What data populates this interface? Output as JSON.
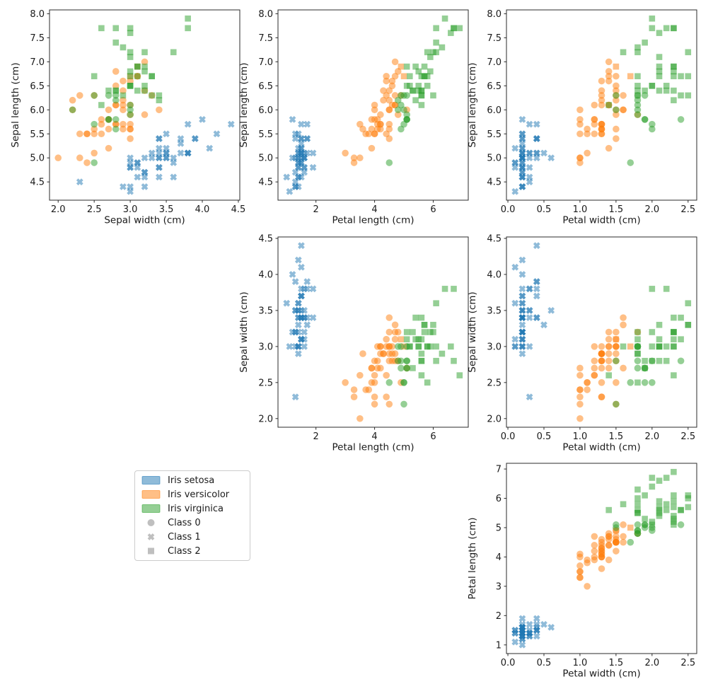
{
  "chart_data": {
    "type": "scatter",
    "dataset": "Iris scatter-plot matrix with cluster markers",
    "marker_alpha": 0.5,
    "spine_color": "#2b2b2b",
    "text_color": "#1a1a1a",
    "species_colors": [
      "#1f77b4",
      "#ff7f0e",
      "#2ca02c"
    ],
    "cluster_markers": [
      "circle",
      "x",
      "square"
    ],
    "legend": {
      "items": [
        {
          "label": "Iris setosa",
          "type": "patch",
          "color": "#1f77b4"
        },
        {
          "label": "Iris versicolor",
          "type": "patch",
          "color": "#ff7f0e"
        },
        {
          "label": "Iris virginica",
          "type": "patch",
          "color": "#2ca02c"
        },
        {
          "label": "Class 0",
          "type": "marker",
          "marker": "circle",
          "color": "#7f7f7f"
        },
        {
          "label": "Class 1",
          "type": "marker",
          "marker": "x",
          "color": "#7f7f7f"
        },
        {
          "label": "Class 2",
          "type": "marker",
          "marker": "square",
          "color": "#7f7f7f"
        }
      ]
    },
    "subplots": [
      {
        "pos": [
          0,
          0
        ],
        "x": "sepal_width",
        "y": "sepal_length",
        "xlabel": "Sepal width (cm)",
        "ylabel": "Sepal length (cm)",
        "xlim": [
          1.88,
          4.52
        ],
        "ylim": [
          4.12,
          8.08
        ],
        "xticks": {
          "values": [
            2.0,
            2.5,
            3.0,
            3.5,
            4.0,
            4.5
          ],
          "labels": [
            "2.0",
            "2.5",
            "3.0",
            "3.5",
            "4.0",
            "4.5"
          ]
        },
        "yticks": {
          "values": [
            4.5,
            5.0,
            5.5,
            6.0,
            6.5,
            7.0,
            7.5,
            8.0
          ],
          "labels": [
            "4.5",
            "5.0",
            "5.5",
            "6.0",
            "6.5",
            "7.0",
            "7.5",
            "8.0"
          ]
        }
      },
      {
        "pos": [
          0,
          1
        ],
        "x": "petal_length",
        "y": "sepal_length",
        "xlabel": "Petal length (cm)",
        "ylabel": "Sepal length (cm)",
        "xlim": [
          0.705,
          7.195
        ],
        "ylim": [
          4.12,
          8.08
        ],
        "xticks": {
          "values": [
            2,
            4,
            6
          ],
          "labels": [
            "2",
            "4",
            "6"
          ]
        },
        "yticks": {
          "values": [
            4.5,
            5.0,
            5.5,
            6.0,
            6.5,
            7.0,
            7.5,
            8.0
          ],
          "labels": [
            "4.5",
            "5.0",
            "5.5",
            "6.0",
            "6.5",
            "7.0",
            "7.5",
            "8.0"
          ]
        }
      },
      {
        "pos": [
          0,
          2
        ],
        "x": "petal_width",
        "y": "sepal_length",
        "xlabel": "Petal width (cm)",
        "ylabel": "Sepal length (cm)",
        "xlim": [
          -0.02,
          2.62
        ],
        "ylim": [
          4.12,
          8.08
        ],
        "xticks": {
          "values": [
            0.0,
            0.5,
            1.0,
            1.5,
            2.0,
            2.5
          ],
          "labels": [
            "0.0",
            "0.5",
            "1.0",
            "1.5",
            "2.0",
            "2.5"
          ]
        },
        "yticks": {
          "values": [
            4.5,
            5.0,
            5.5,
            6.0,
            6.5,
            7.0,
            7.5,
            8.0
          ],
          "labels": [
            "4.5",
            "5.0",
            "5.5",
            "6.0",
            "6.5",
            "7.0",
            "7.5",
            "8.0"
          ]
        }
      },
      {
        "pos": [
          1,
          1
        ],
        "x": "petal_length",
        "y": "sepal_width",
        "xlabel": "Petal length (cm)",
        "ylabel": "Sepal width (cm)",
        "xlim": [
          0.705,
          7.195
        ],
        "ylim": [
          1.88,
          4.52
        ],
        "xticks": {
          "values": [
            2,
            4,
            6
          ],
          "labels": [
            "2",
            "4",
            "6"
          ]
        },
        "yticks": {
          "values": [
            2.0,
            2.5,
            3.0,
            3.5,
            4.0,
            4.5
          ],
          "labels": [
            "2.0",
            "2.5",
            "3.0",
            "3.5",
            "4.0",
            "4.5"
          ]
        }
      },
      {
        "pos": [
          1,
          2
        ],
        "x": "petal_width",
        "y": "sepal_width",
        "xlabel": "Petal width (cm)",
        "ylabel": "Sepal width (cm)",
        "xlim": [
          -0.02,
          2.62
        ],
        "ylim": [
          1.88,
          4.52
        ],
        "xticks": {
          "values": [
            0.0,
            0.5,
            1.0,
            1.5,
            2.0,
            2.5
          ],
          "labels": [
            "0.0",
            "0.5",
            "1.0",
            "1.5",
            "2.0",
            "2.5"
          ]
        },
        "yticks": {
          "values": [
            2.0,
            2.5,
            3.0,
            3.5,
            4.0,
            4.5
          ],
          "labels": [
            "2.0",
            "2.5",
            "3.0",
            "3.5",
            "4.0",
            "4.5"
          ]
        }
      },
      {
        "pos": [
          2,
          2
        ],
        "x": "petal_width",
        "y": "petal_length",
        "xlabel": "Petal width (cm)",
        "ylabel": "Petal length (cm)",
        "xlim": [
          -0.02,
          2.62
        ],
        "ylim": [
          0.705,
          7.195
        ],
        "xticks": {
          "values": [
            0.0,
            0.5,
            1.0,
            1.5,
            2.0,
            2.5
          ],
          "labels": [
            "0.0",
            "0.5",
            "1.0",
            "1.5",
            "2.0",
            "2.5"
          ]
        },
        "yticks": {
          "values": [
            1,
            2,
            3,
            4,
            5,
            6,
            7
          ],
          "labels": [
            "1",
            "2",
            "3",
            "4",
            "5",
            "6",
            "7"
          ]
        }
      }
    ],
    "groups": [
      {
        "species": "Iris setosa",
        "color": "#1f77b4",
        "sepal_length": [
          5.1,
          4.9,
          4.7,
          4.6,
          5.0,
          5.4,
          4.6,
          5.0,
          4.4,
          4.9,
          5.4,
          4.8,
          4.8,
          4.3,
          5.8,
          5.7,
          5.4,
          5.1,
          5.7,
          5.1,
          5.4,
          5.1,
          4.6,
          5.1,
          4.8,
          5.0,
          5.0,
          5.2,
          5.2,
          4.7,
          4.8,
          5.4,
          5.2,
          5.5,
          4.9,
          5.0,
          5.5,
          4.9,
          4.4,
          5.1,
          5.0,
          4.5,
          4.4,
          5.0,
          5.1,
          4.8,
          5.1,
          4.6,
          5.3,
          5.0
        ],
        "sepal_width": [
          3.5,
          3.0,
          3.2,
          3.1,
          3.6,
          3.9,
          3.4,
          3.4,
          2.9,
          3.1,
          3.7,
          3.4,
          3.0,
          3.0,
          4.0,
          4.4,
          3.9,
          3.5,
          3.8,
          3.8,
          3.4,
          3.7,
          3.6,
          3.3,
          3.4,
          3.0,
          3.4,
          3.5,
          3.4,
          3.2,
          3.1,
          3.4,
          4.1,
          4.2,
          3.1,
          3.2,
          3.5,
          3.6,
          3.0,
          3.4,
          3.5,
          2.3,
          3.2,
          3.5,
          3.8,
          3.0,
          3.8,
          3.2,
          3.7,
          3.3
        ],
        "petal_length": [
          1.4,
          1.4,
          1.3,
          1.5,
          1.4,
          1.7,
          1.4,
          1.5,
          1.4,
          1.5,
          1.5,
          1.6,
          1.4,
          1.1,
          1.2,
          1.5,
          1.3,
          1.4,
          1.7,
          1.5,
          1.7,
          1.5,
          1.0,
          1.7,
          1.9,
          1.6,
          1.6,
          1.5,
          1.4,
          1.6,
          1.6,
          1.5,
          1.5,
          1.4,
          1.5,
          1.2,
          1.3,
          1.4,
          1.3,
          1.5,
          1.3,
          1.3,
          1.3,
          1.6,
          1.9,
          1.4,
          1.6,
          1.4,
          1.5,
          1.4
        ],
        "petal_width": [
          0.2,
          0.2,
          0.2,
          0.2,
          0.2,
          0.4,
          0.3,
          0.2,
          0.2,
          0.1,
          0.2,
          0.2,
          0.1,
          0.1,
          0.2,
          0.4,
          0.4,
          0.3,
          0.3,
          0.3,
          0.2,
          0.4,
          0.2,
          0.5,
          0.2,
          0.2,
          0.4,
          0.2,
          0.2,
          0.2,
          0.2,
          0.4,
          0.1,
          0.2,
          0.2,
          0.2,
          0.2,
          0.1,
          0.2,
          0.2,
          0.3,
          0.3,
          0.2,
          0.6,
          0.4,
          0.3,
          0.2,
          0.2,
          0.2,
          0.2
        ],
        "cluster": [
          1,
          1,
          1,
          1,
          1,
          1,
          1,
          1,
          1,
          1,
          1,
          1,
          1,
          1,
          1,
          1,
          1,
          1,
          1,
          1,
          1,
          1,
          1,
          1,
          1,
          1,
          1,
          1,
          1,
          1,
          1,
          1,
          1,
          1,
          1,
          1,
          1,
          1,
          1,
          1,
          1,
          1,
          1,
          1,
          1,
          1,
          1,
          1,
          1,
          1
        ]
      },
      {
        "species": "Iris versicolor",
        "color": "#ff7f0e",
        "sepal_length": [
          7.0,
          6.4,
          6.9,
          5.5,
          6.5,
          5.7,
          6.3,
          4.9,
          6.6,
          5.2,
          5.0,
          5.9,
          6.0,
          6.1,
          5.6,
          6.7,
          5.6,
          5.8,
          6.2,
          5.6,
          5.9,
          6.1,
          6.3,
          6.1,
          6.4,
          6.6,
          6.8,
          6.7,
          6.0,
          5.7,
          5.5,
          5.5,
          5.8,
          6.0,
          5.4,
          6.0,
          6.7,
          6.3,
          5.6,
          5.5,
          5.5,
          6.1,
          5.8,
          5.0,
          5.6,
          5.7,
          5.7,
          6.2,
          5.1,
          5.7
        ],
        "sepal_width": [
          3.2,
          3.2,
          3.1,
          2.3,
          2.8,
          2.8,
          3.3,
          2.4,
          2.9,
          2.7,
          2.0,
          3.0,
          2.2,
          2.9,
          2.9,
          3.1,
          3.0,
          2.7,
          2.2,
          2.5,
          3.2,
          2.8,
          2.5,
          2.8,
          2.9,
          3.0,
          2.8,
          3.0,
          2.9,
          2.6,
          2.4,
          2.4,
          2.7,
          2.7,
          3.0,
          3.4,
          3.1,
          2.3,
          3.0,
          2.5,
          2.6,
          3.0,
          2.6,
          2.3,
          2.7,
          3.0,
          2.9,
          2.9,
          2.5,
          2.8
        ],
        "petal_length": [
          4.7,
          4.5,
          4.9,
          4.0,
          4.6,
          4.5,
          4.7,
          3.3,
          4.6,
          3.9,
          3.5,
          4.2,
          4.0,
          4.7,
          3.6,
          4.4,
          4.5,
          4.1,
          4.5,
          3.9,
          4.8,
          4.0,
          4.9,
          4.7,
          4.3,
          4.4,
          4.8,
          5.0,
          4.5,
          3.5,
          3.8,
          3.7,
          3.9,
          5.1,
          4.5,
          4.5,
          4.7,
          4.4,
          4.1,
          4.0,
          4.4,
          4.6,
          4.0,
          3.3,
          4.2,
          4.2,
          4.2,
          4.3,
          3.0,
          4.1
        ],
        "petal_width": [
          1.4,
          1.5,
          1.5,
          1.3,
          1.5,
          1.3,
          1.6,
          1.0,
          1.3,
          1.4,
          1.0,
          1.5,
          1.0,
          1.4,
          1.3,
          1.4,
          1.5,
          1.0,
          1.5,
          1.1,
          1.8,
          1.3,
          1.5,
          1.2,
          1.3,
          1.4,
          1.4,
          1.7,
          1.5,
          1.0,
          1.1,
          1.0,
          1.2,
          1.6,
          1.5,
          1.6,
          1.5,
          1.3,
          1.3,
          1.3,
          1.2,
          1.4,
          1.2,
          1.0,
          1.3,
          1.2,
          1.3,
          1.3,
          1.1,
          1.3
        ],
        "cluster": [
          0,
          0,
          2,
          0,
          0,
          0,
          0,
          0,
          0,
          0,
          0,
          0,
          0,
          0,
          0,
          0,
          0,
          0,
          0,
          0,
          0,
          0,
          0,
          0,
          0,
          0,
          0,
          2,
          0,
          0,
          0,
          0,
          0,
          0,
          0,
          0,
          0,
          0,
          0,
          0,
          0,
          0,
          0,
          0,
          0,
          0,
          0,
          0,
          0,
          0
        ]
      },
      {
        "species": "Iris virginica",
        "color": "#2ca02c",
        "sepal_length": [
          6.3,
          5.8,
          7.1,
          6.3,
          6.5,
          7.6,
          4.9,
          7.3,
          6.7,
          7.2,
          6.5,
          6.4,
          6.8,
          5.7,
          5.8,
          6.4,
          6.5,
          7.7,
          7.7,
          6.0,
          6.9,
          5.6,
          7.7,
          6.3,
          6.7,
          7.2,
          6.2,
          6.1,
          6.4,
          7.2,
          7.4,
          7.9,
          6.4,
          6.3,
          6.1,
          7.7,
          6.3,
          6.4,
          6.0,
          6.9,
          6.7,
          6.9,
          5.8,
          6.8,
          6.7,
          6.7,
          6.3,
          6.5,
          6.2,
          5.9
        ],
        "sepal_width": [
          3.3,
          2.7,
          3.0,
          2.9,
          3.0,
          3.0,
          2.5,
          2.9,
          2.5,
          3.6,
          3.2,
          2.7,
          3.0,
          2.5,
          2.8,
          3.2,
          3.0,
          3.8,
          2.6,
          2.2,
          3.2,
          2.8,
          2.8,
          2.7,
          3.3,
          3.2,
          2.8,
          3.0,
          2.8,
          3.0,
          2.8,
          3.8,
          2.8,
          2.8,
          2.6,
          3.0,
          3.4,
          3.1,
          3.0,
          3.1,
          3.1,
          3.1,
          2.7,
          3.2,
          3.3,
          3.0,
          2.5,
          3.0,
          3.4,
          3.0
        ],
        "petal_length": [
          6.0,
          5.1,
          5.9,
          5.6,
          5.8,
          6.6,
          4.5,
          6.3,
          5.8,
          6.1,
          5.1,
          5.3,
          5.5,
          5.0,
          5.1,
          5.3,
          5.5,
          6.7,
          6.9,
          5.0,
          5.7,
          4.9,
          6.7,
          4.9,
          5.7,
          6.0,
          4.8,
          4.9,
          5.6,
          5.8,
          6.1,
          6.4,
          5.6,
          5.1,
          5.6,
          6.1,
          5.6,
          5.5,
          4.8,
          5.4,
          5.6,
          5.1,
          5.1,
          5.9,
          5.7,
          5.2,
          5.0,
          5.2,
          5.4,
          5.1
        ],
        "petal_width": [
          2.5,
          1.9,
          2.1,
          1.8,
          2.2,
          2.1,
          1.7,
          1.8,
          1.8,
          2.5,
          2.0,
          1.9,
          2.1,
          2.0,
          2.4,
          2.3,
          1.8,
          2.2,
          2.3,
          1.5,
          2.3,
          2.0,
          2.0,
          1.8,
          2.1,
          1.8,
          1.8,
          1.8,
          2.1,
          1.6,
          1.9,
          2.0,
          2.2,
          1.5,
          1.4,
          2.3,
          2.4,
          1.8,
          1.8,
          2.1,
          2.4,
          2.3,
          1.9,
          2.3,
          2.5,
          2.3,
          1.9,
          2.0,
          2.3,
          1.8
        ],
        "cluster": [
          2,
          0,
          2,
          2,
          2,
          2,
          0,
          2,
          2,
          2,
          2,
          2,
          2,
          0,
          0,
          2,
          2,
          2,
          2,
          0,
          2,
          0,
          2,
          0,
          2,
          2,
          0,
          0,
          2,
          2,
          2,
          2,
          2,
          0,
          2,
          2,
          2,
          2,
          0,
          2,
          2,
          2,
          0,
          2,
          2,
          2,
          0,
          2,
          2,
          0
        ]
      }
    ]
  }
}
